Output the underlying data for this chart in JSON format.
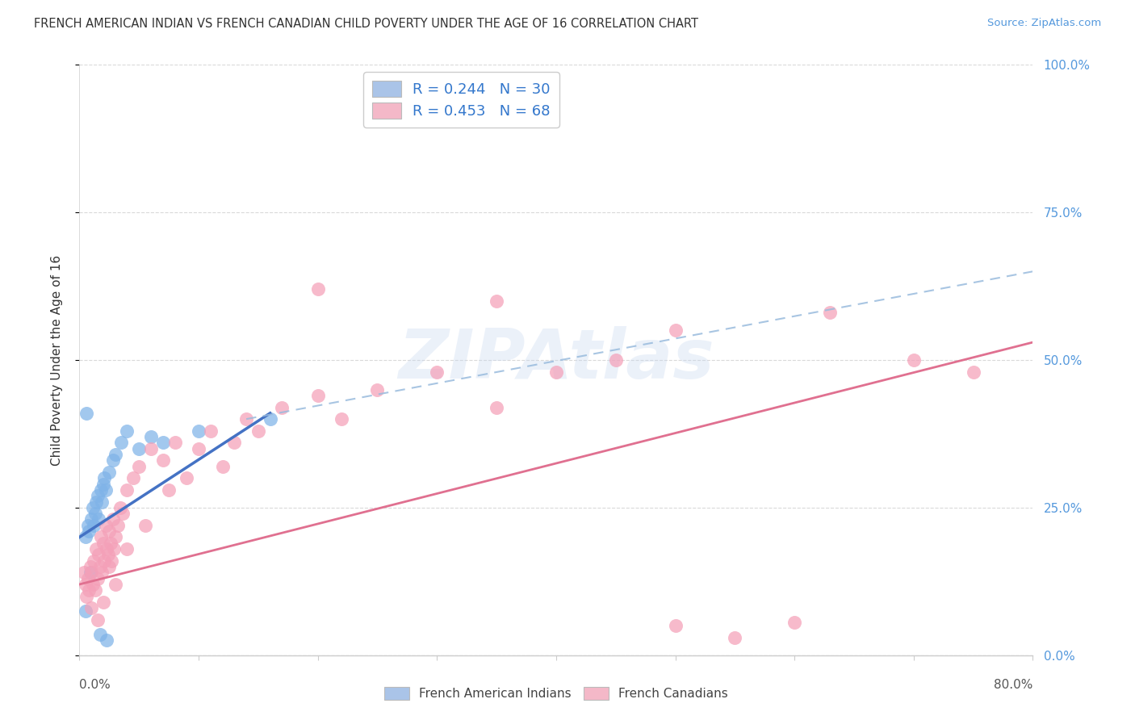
{
  "title": "FRENCH AMERICAN INDIAN VS FRENCH CANADIAN CHILD POVERTY UNDER THE AGE OF 16 CORRELATION CHART",
  "source": "Source: ZipAtlas.com",
  "ylabel": "Child Poverty Under the Age of 16",
  "ytick_labels": [
    "0.0%",
    "25.0%",
    "50.0%",
    "75.0%",
    "100.0%"
  ],
  "ytick_values": [
    0,
    25,
    50,
    75,
    100
  ],
  "xlim": [
    0,
    80
  ],
  "ylim": [
    0,
    100
  ],
  "legend_line1": "R = 0.244   N = 30",
  "legend_line2": "R = 0.453   N = 68",
  "legend_color1": "#aac4e8",
  "legend_color2": "#f4b8c8",
  "watermark": "ZIPAtlas",
  "blue_scatter_x": [
    0.5,
    0.7,
    0.8,
    1.0,
    1.1,
    1.2,
    1.3,
    1.4,
    1.5,
    1.6,
    1.8,
    1.9,
    2.0,
    2.1,
    2.2,
    2.5,
    2.8,
    3.0,
    3.5,
    4.0,
    5.0,
    6.0,
    7.0,
    10.0,
    0.6,
    0.9,
    1.7,
    2.3,
    0.5,
    16.0
  ],
  "blue_scatter_y": [
    20.0,
    22.0,
    21.0,
    23.0,
    25.0,
    22.0,
    24.0,
    26.0,
    27.0,
    23.0,
    28.0,
    26.0,
    29.0,
    30.0,
    28.0,
    31.0,
    33.0,
    34.0,
    36.0,
    38.0,
    35.0,
    37.0,
    36.0,
    38.0,
    41.0,
    14.0,
    3.5,
    2.5,
    7.5,
    40.0
  ],
  "pink_scatter_x": [
    0.4,
    0.5,
    0.6,
    0.7,
    0.8,
    0.9,
    1.0,
    1.1,
    1.2,
    1.3,
    1.4,
    1.5,
    1.6,
    1.7,
    1.8,
    1.9,
    2.0,
    2.1,
    2.2,
    2.3,
    2.4,
    2.5,
    2.6,
    2.7,
    2.8,
    2.9,
    3.0,
    3.2,
    3.4,
    3.6,
    4.0,
    4.5,
    5.0,
    6.0,
    7.0,
    8.0,
    9.0,
    10.0,
    11.0,
    12.0,
    13.0,
    14.0,
    15.0,
    17.0,
    20.0,
    22.0,
    25.0,
    30.0,
    35.0,
    40.0,
    45.0,
    50.0,
    55.0,
    60.0,
    1.0,
    1.5,
    2.0,
    2.5,
    3.0,
    4.0,
    5.5,
    7.5,
    20.0,
    35.0,
    50.0,
    63.0,
    70.0,
    75.0
  ],
  "pink_scatter_y": [
    14.0,
    12.0,
    10.0,
    13.0,
    11.0,
    15.0,
    14.0,
    12.0,
    16.0,
    11.0,
    18.0,
    13.0,
    17.0,
    15.0,
    20.0,
    14.0,
    19.0,
    16.0,
    22.0,
    18.0,
    17.0,
    21.0,
    19.0,
    16.0,
    23.0,
    18.0,
    20.0,
    22.0,
    25.0,
    24.0,
    28.0,
    30.0,
    32.0,
    35.0,
    33.0,
    36.0,
    30.0,
    35.0,
    38.0,
    32.0,
    36.0,
    40.0,
    38.0,
    42.0,
    44.0,
    40.0,
    45.0,
    48.0,
    42.0,
    48.0,
    50.0,
    5.0,
    3.0,
    5.5,
    8.0,
    6.0,
    9.0,
    15.0,
    12.0,
    18.0,
    22.0,
    28.0,
    62.0,
    60.0,
    55.0,
    58.0,
    50.0,
    48.0
  ],
  "blue_line_x": [
    0,
    16
  ],
  "blue_line_y": [
    20.0,
    41.0
  ],
  "pink_line_x": [
    0,
    80
  ],
  "pink_line_y": [
    12.0,
    53.0
  ],
  "dash_line_x": [
    14,
    80
  ],
  "dash_line_y": [
    40.0,
    65.0
  ],
  "grid_color": "#d0d0d0",
  "blue_color": "#7fb3e8",
  "pink_color": "#f4a0b8",
  "blue_line_color": "#4472c4",
  "pink_line_color": "#e07090",
  "dash_line_color": "#99bbdd",
  "ytick_color": "#5599dd",
  "title_color": "#333333",
  "source_color": "#5599dd",
  "legend_text_color": "#3377cc"
}
